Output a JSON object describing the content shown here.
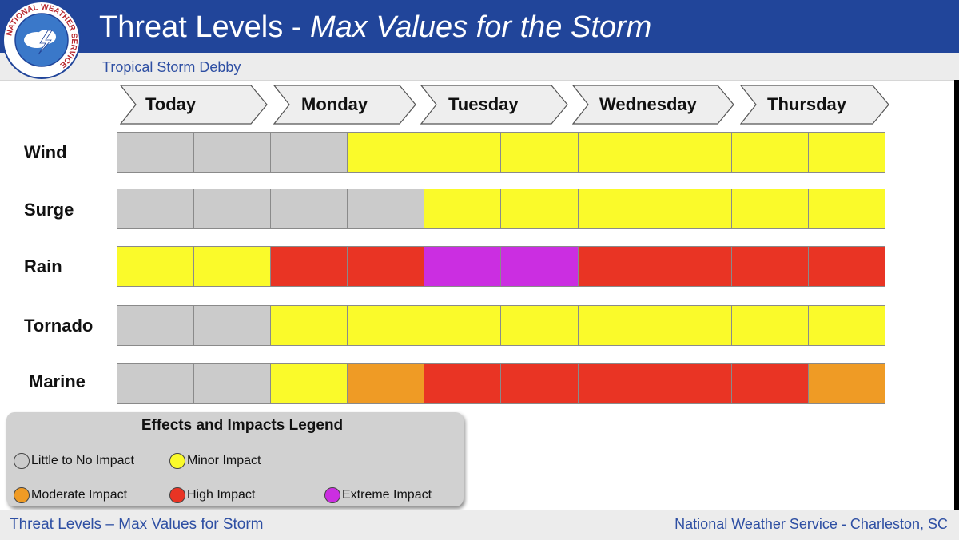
{
  "header": {
    "title_main": "Threat Levels - ",
    "title_italic": "Max Values for the Storm",
    "subtitle": "Tropical Storm Debby"
  },
  "logo": {
    "text": "NATIONAL WEATHER SERVICE",
    "icon": "nws-logo"
  },
  "days": [
    "Today",
    "Monday",
    "Tuesday",
    "Wednesday",
    "Thursday"
  ],
  "levels": {
    "little": "#cbcbcb",
    "minor": "#fafa2a",
    "moderate": "#ef9b25",
    "high": "#e93424",
    "extreme": "#cb2ee1"
  },
  "threats": [
    {
      "label": "Wind",
      "cells": [
        "little",
        "little",
        "little",
        "minor",
        "minor",
        "minor",
        "minor",
        "minor",
        "minor",
        "minor"
      ]
    },
    {
      "label": "Surge",
      "cells": [
        "little",
        "little",
        "little",
        "little",
        "minor",
        "minor",
        "minor",
        "minor",
        "minor",
        "minor"
      ]
    },
    {
      "label": "Rain",
      "cells": [
        "minor",
        "minor",
        "high",
        "high",
        "extreme",
        "extreme",
        "high",
        "high",
        "high",
        "high"
      ]
    },
    {
      "label": "Tornado",
      "cells": [
        "little",
        "little",
        "minor",
        "minor",
        "minor",
        "minor",
        "minor",
        "minor",
        "minor",
        "minor"
      ]
    },
    {
      "label": "Marine",
      "cells": [
        "little",
        "little",
        "minor",
        "moderate",
        "high",
        "high",
        "high",
        "high",
        "high",
        "moderate"
      ]
    }
  ],
  "legend": {
    "title": "Effects and Impacts Legend",
    "items": [
      {
        "label": "Little to No Impact",
        "level": "little"
      },
      {
        "label": "Minor Impact",
        "level": "minor"
      },
      {
        "label": "Moderate Impact",
        "level": "moderate"
      },
      {
        "label": "High Impact",
        "level": "high"
      },
      {
        "label": "Extreme Impact",
        "level": "extreme"
      }
    ]
  },
  "footer": {
    "left": "Threat Levels – Max Values for Storm",
    "right": "National Weather Service - Charleston, SC"
  }
}
